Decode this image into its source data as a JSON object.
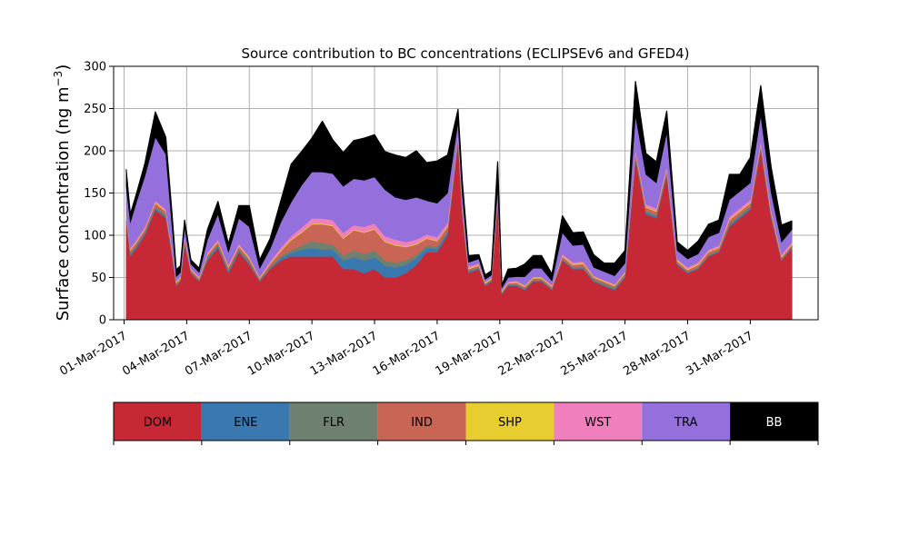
{
  "chart_data": {
    "type": "area",
    "stacked": true,
    "title": "Source contribution to BC concentrations (ECLIPSEv6 and GFED4)",
    "ylabel": "Surface concentration (ng m",
    "ylabel_exponent": "−3",
    "ylabel_close": ")",
    "xlabel": "",
    "ylim": [
      0,
      300
    ],
    "yticks": [
      0,
      50,
      100,
      150,
      200,
      250,
      300
    ],
    "xlim": [
      "2017-02-28T12:00",
      "2017-04-03T06:00"
    ],
    "xticks": [
      "01-Mar-2017",
      "04-Mar-2017",
      "07-Mar-2017",
      "10-Mar-2017",
      "13-Mar-2017",
      "16-Mar-2017",
      "19-Mar-2017",
      "22-Mar-2017",
      "25-Mar-2017",
      "28-Mar-2017",
      "31-Mar-2017"
    ],
    "grid": true,
    "x_day_of_march": [
      1.1,
      1.3,
      1.6,
      2.0,
      2.5,
      3.0,
      3.3,
      3.5,
      3.7,
      3.9,
      4.2,
      4.6,
      5.0,
      5.5,
      6.0,
      6.5,
      7.0,
      7.5,
      8.0,
      8.5,
      9.0,
      9.5,
      10.0,
      10.5,
      11.0,
      11.5,
      12.0,
      12.5,
      13.0,
      13.5,
      14.0,
      14.5,
      15.0,
      15.5,
      16.0,
      16.5,
      17.0,
      17.2,
      17.5,
      18.0,
      18.3,
      18.6,
      18.9,
      19.1,
      19.4,
      19.8,
      20.2,
      20.6,
      21.0,
      21.5,
      22.0,
      22.5,
      23.0,
      23.5,
      24.0,
      24.5,
      25.0,
      25.5,
      26.0,
      26.5,
      27.0,
      27.5,
      28.0,
      28.5,
      29.0,
      29.5,
      30.0,
      30.5,
      31.0,
      31.5,
      32.0,
      32.5,
      33.0
    ],
    "series": [
      {
        "name": "DOM",
        "color": "#c62835",
        "values": [
          118,
          75,
          85,
          100,
          130,
          120,
          75,
          40,
          45,
          90,
          55,
          45,
          70,
          85,
          55,
          80,
          65,
          45,
          60,
          70,
          75,
          75,
          75,
          75,
          75,
          60,
          60,
          55,
          60,
          50,
          50,
          55,
          65,
          80,
          80,
          100,
          210,
          125,
          55,
          60,
          40,
          45,
          140,
          30,
          40,
          40,
          35,
          45,
          45,
          35,
          70,
          60,
          60,
          45,
          40,
          35,
          50,
          190,
          125,
          120,
          170,
          65,
          55,
          60,
          75,
          80,
          110,
          120,
          130,
          200,
          120,
          70,
          85
        ]
      },
      {
        "name": "ENE",
        "color": "#3a78b0",
        "values": [
          2,
          2,
          2,
          2,
          2,
          2,
          2,
          1,
          1,
          2,
          1,
          1,
          2,
          2,
          2,
          2,
          2,
          1,
          1,
          3,
          4,
          8,
          10,
          8,
          8,
          10,
          14,
          15,
          14,
          14,
          12,
          10,
          8,
          5,
          4,
          3,
          2,
          2,
          2,
          1,
          1,
          1,
          1,
          1,
          1,
          1,
          1,
          1,
          1,
          1,
          1,
          1,
          1,
          1,
          1,
          1,
          1,
          2,
          2,
          2,
          2,
          1,
          1,
          1,
          1,
          1,
          2,
          2,
          2,
          2,
          2,
          1,
          1
        ]
      },
      {
        "name": "FLR",
        "color": "#6e8070",
        "values": [
          2,
          2,
          2,
          2,
          2,
          2,
          2,
          1,
          1,
          2,
          1,
          1,
          2,
          2,
          2,
          2,
          2,
          1,
          2,
          2,
          3,
          5,
          8,
          8,
          6,
          6,
          8,
          8,
          8,
          6,
          6,
          5,
          4,
          3,
          3,
          2,
          2,
          2,
          1,
          1,
          1,
          1,
          1,
          1,
          1,
          1,
          1,
          1,
          1,
          1,
          1,
          1,
          2,
          2,
          2,
          2,
          2,
          2,
          2,
          2,
          2,
          1,
          1,
          1,
          1,
          1,
          2,
          2,
          2,
          2,
          2,
          1,
          1
        ]
      },
      {
        "name": "IND",
        "color": "#c96555",
        "values": [
          3,
          3,
          3,
          3,
          4,
          4,
          3,
          2,
          2,
          3,
          2,
          2,
          3,
          3,
          3,
          3,
          3,
          2,
          3,
          6,
          12,
          15,
          20,
          22,
          22,
          20,
          24,
          25,
          25,
          22,
          20,
          16,
          12,
          8,
          6,
          5,
          4,
          3,
          2,
          2,
          1,
          1,
          2,
          1,
          1,
          2,
          2,
          2,
          2,
          2,
          3,
          3,
          3,
          2,
          2,
          2,
          2,
          4,
          4,
          4,
          4,
          2,
          2,
          3,
          3,
          3,
          4,
          4,
          4,
          4,
          3,
          2,
          2
        ]
      },
      {
        "name": "SHP",
        "color": "#e8cd30",
        "values": [
          1,
          1,
          1,
          1,
          1,
          1,
          1,
          1,
          1,
          1,
          1,
          1,
          1,
          1,
          1,
          1,
          1,
          1,
          1,
          1,
          1,
          1,
          1,
          1,
          1,
          1,
          1,
          1,
          1,
          1,
          1,
          1,
          1,
          1,
          1,
          1,
          1,
          1,
          1,
          1,
          1,
          1,
          1,
          1,
          1,
          1,
          1,
          1,
          1,
          1,
          1,
          1,
          1,
          1,
          1,
          1,
          1,
          1,
          1,
          1,
          1,
          1,
          1,
          1,
          1,
          1,
          1,
          1,
          1,
          1,
          1,
          1,
          1
        ]
      },
      {
        "name": "WST",
        "color": "#f07fbd",
        "values": [
          2,
          2,
          2,
          2,
          2,
          2,
          2,
          1,
          1,
          2,
          1,
          1,
          2,
          2,
          2,
          2,
          2,
          1,
          2,
          3,
          4,
          5,
          6,
          6,
          6,
          6,
          5,
          6,
          6,
          6,
          6,
          5,
          5,
          4,
          4,
          4,
          3,
          2,
          2,
          2,
          1,
          1,
          2,
          1,
          1,
          1,
          1,
          1,
          1,
          1,
          2,
          2,
          2,
          1,
          1,
          1,
          1,
          3,
          3,
          3,
          3,
          2,
          2,
          2,
          2,
          2,
          3,
          3,
          3,
          3,
          3,
          2,
          2
        ]
      },
      {
        "name": "TRA",
        "color": "#9370db",
        "values": [
          30,
          30,
          45,
          60,
          75,
          65,
          25,
          5,
          5,
          10,
          5,
          5,
          15,
          30,
          15,
          30,
          35,
          10,
          15,
          30,
          40,
          50,
          55,
          55,
          55,
          55,
          55,
          55,
          55,
          55,
          50,
          50,
          50,
          40,
          40,
          35,
          12,
          15,
          5,
          5,
          3,
          3,
          10,
          3,
          5,
          5,
          10,
          10,
          10,
          5,
          25,
          20,
          20,
          10,
          10,
          10,
          10,
          40,
          35,
          30,
          40,
          10,
          10,
          10,
          15,
          15,
          20,
          20,
          20,
          30,
          20,
          15,
          15
        ]
      },
      {
        "name": "BB",
        "color": "#000000",
        "values": [
          20,
          10,
          10,
          15,
          30,
          20,
          15,
          8,
          8,
          8,
          5,
          5,
          12,
          15,
          10,
          15,
          25,
          10,
          12,
          25,
          45,
          40,
          40,
          60,
          40,
          40,
          45,
          50,
          50,
          45,
          50,
          50,
          55,
          45,
          50,
          45,
          15,
          15,
          8,
          5,
          5,
          5,
          30,
          3,
          10,
          10,
          15,
          15,
          15,
          8,
          20,
          15,
          15,
          15,
          10,
          15,
          15,
          40,
          25,
          25,
          25,
          10,
          10,
          15,
          15,
          15,
          30,
          20,
          30,
          35,
          30,
          20,
          10
        ]
      }
    ],
    "legend_position": "below",
    "legend": [
      {
        "label": "DOM",
        "color": "#c62835",
        "text_color": "#000000"
      },
      {
        "label": "ENE",
        "color": "#3a78b0",
        "text_color": "#000000"
      },
      {
        "label": "FLR",
        "color": "#6e8070",
        "text_color": "#000000"
      },
      {
        "label": "IND",
        "color": "#c96555",
        "text_color": "#000000"
      },
      {
        "label": "SHP",
        "color": "#e8cd30",
        "text_color": "#000000"
      },
      {
        "label": "WST",
        "color": "#f07fbd",
        "text_color": "#000000"
      },
      {
        "label": "TRA",
        "color": "#9370db",
        "text_color": "#000000"
      },
      {
        "label": "BB",
        "color": "#000000",
        "text_color": "#ffffff"
      }
    ]
  }
}
